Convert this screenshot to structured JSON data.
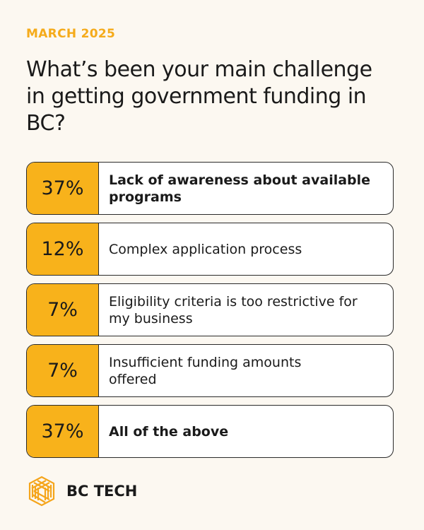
{
  "date": "MARCH 2025",
  "title": "What’s been your main challenge in getting government funding in BC?",
  "colors": {
    "accent": "#f8b21b",
    "background": "#fcf8f1",
    "border": "#2a2a2a"
  },
  "chart_data": {
    "type": "table",
    "categories": [
      "Lack of awareness about available programs",
      "Complex application process",
      "Eligibility criteria is too restrictive for my business",
      "Insufficient funding amounts offered",
      "All of the above"
    ],
    "values": [
      37,
      12,
      7,
      7,
      37
    ],
    "value_labels": [
      "37%",
      "12%",
      "7%",
      "7%",
      "37%"
    ],
    "highlighted": [
      true,
      false,
      false,
      false,
      true
    ]
  },
  "brand": {
    "name": "BC TECH",
    "logo_icon": "woven-hexagon-logo"
  }
}
